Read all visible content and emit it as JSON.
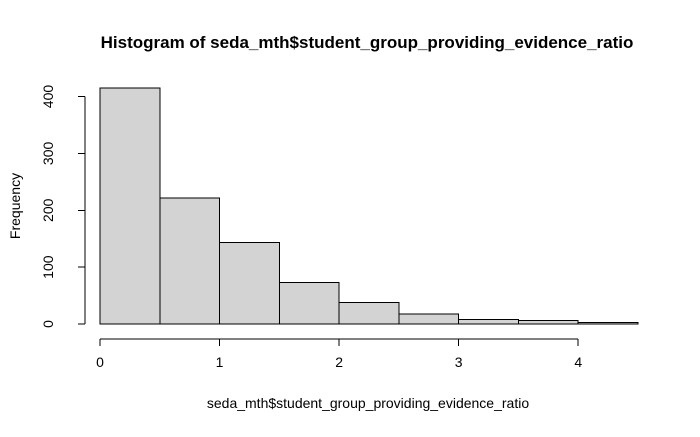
{
  "chart_data": {
    "type": "bar",
    "title": "Histogram of seda_mth$student_group_providing_evidence_ratio",
    "xlabel": "seda_mth$student_group_providing_evidence_ratio",
    "ylabel": "Frequency",
    "bins": [
      {
        "start": 0.0,
        "end": 0.5,
        "count": 415
      },
      {
        "start": 0.5,
        "end": 1.0,
        "count": 222
      },
      {
        "start": 1.0,
        "end": 1.5,
        "count": 143
      },
      {
        "start": 1.5,
        "end": 2.0,
        "count": 73
      },
      {
        "start": 2.0,
        "end": 2.5,
        "count": 38
      },
      {
        "start": 2.5,
        "end": 3.0,
        "count": 18
      },
      {
        "start": 3.0,
        "end": 3.5,
        "count": 8
      },
      {
        "start": 3.5,
        "end": 4.0,
        "count": 6
      },
      {
        "start": 4.0,
        "end": 4.5,
        "count": 3
      }
    ],
    "x_ticks": [
      "0",
      "1",
      "2",
      "3",
      "4"
    ],
    "x_tick_values": [
      0,
      1,
      2,
      3,
      4
    ],
    "y_ticks": [
      "0",
      "100",
      "200",
      "300",
      "400"
    ],
    "y_tick_values": [
      0,
      100,
      200,
      300,
      400
    ],
    "xlim": [
      0,
      4.5
    ],
    "ylim": [
      0,
      415
    ],
    "grid": false,
    "bar_fill_color": "#d3d3d3",
    "bar_stroke_color": "#000000"
  }
}
